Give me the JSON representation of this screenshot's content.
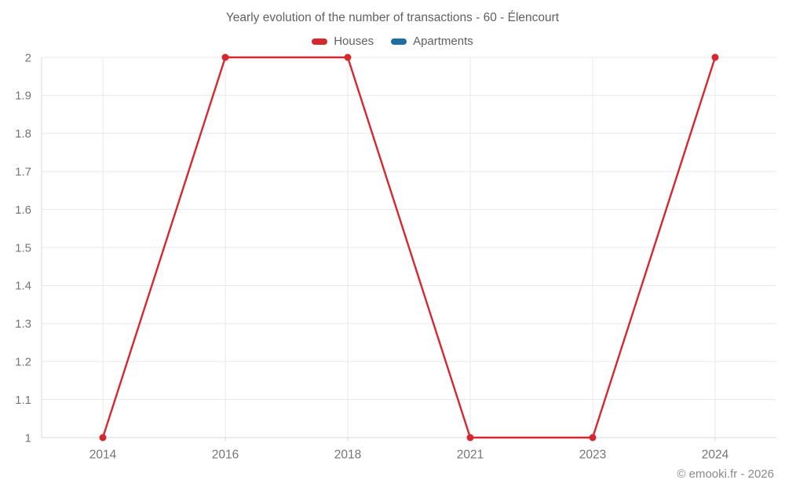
{
  "title": "Yearly evolution of the number of transactions - 60 - Élencourt",
  "legend": [
    {
      "label": "Houses",
      "color": "#d5282e"
    },
    {
      "label": "Apartments",
      "color": "#1c6ea4"
    }
  ],
  "watermark": "© emooki.fr - 2026",
  "chart_data": {
    "type": "line",
    "title": "Yearly evolution of the number of transactions - 60 - Élencourt",
    "categories": [
      "2014",
      "2016",
      "2018",
      "2021",
      "2023",
      "2024"
    ],
    "series": [
      {
        "name": "Houses",
        "color": "#d5282e",
        "values": [
          1,
          2,
          2,
          1,
          1,
          2
        ]
      },
      {
        "name": "Apartments",
        "color": "#1c6ea4",
        "values": []
      }
    ],
    "xlabel": "",
    "ylabel": "",
    "ylim": [
      1,
      2
    ],
    "ytick_step": 0.1,
    "grid": true,
    "legend_position": "top",
    "colors": {
      "gridline": "#e8e8e8",
      "axis": "#d9d9d9",
      "tick_text": "#757575"
    }
  }
}
